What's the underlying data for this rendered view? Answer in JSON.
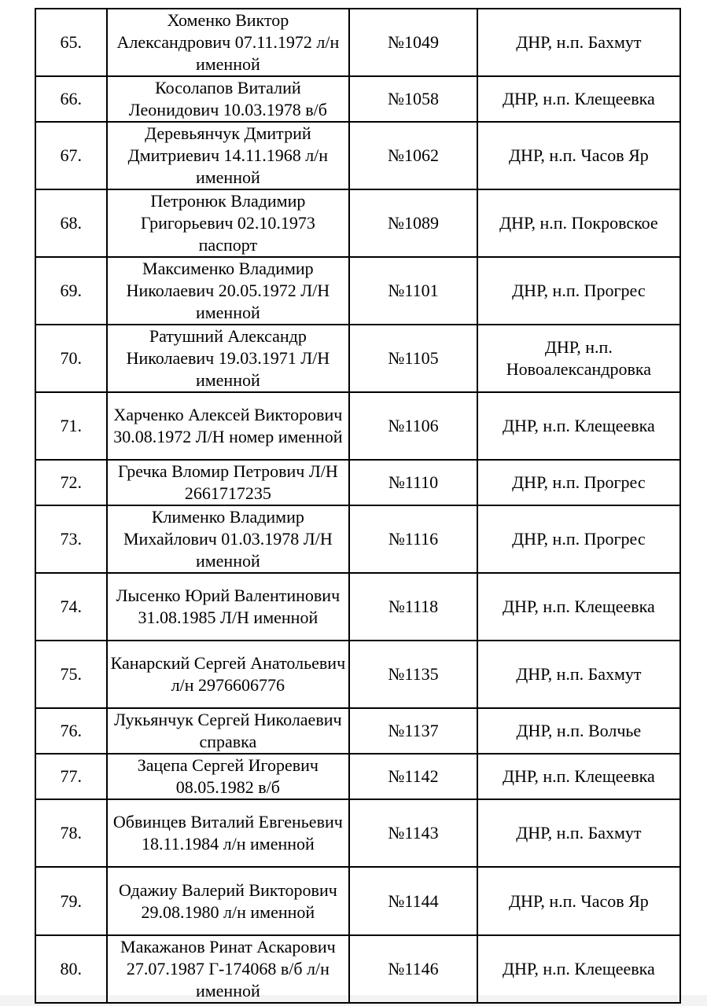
{
  "rows": [
    {
      "num": "65.",
      "name": "Хоменко Виктор Александрович 07.11.1972 л/н именной",
      "id": "№1049",
      "place": "ДНР, н.п. Бахмут"
    },
    {
      "num": "66.",
      "name": "Косолапов Виталий Леонидович 10.03.1978 в/б",
      "id": "№1058",
      "place": "ДНР, н.п. Клещеевка"
    },
    {
      "num": "67.",
      "name": "Деревьянчук Дмитрий Дмитриевич 14.11.1968 л/н именной",
      "id": "№1062",
      "place": "ДНР, н.п. Часов Яр"
    },
    {
      "num": "68.",
      "name": "Петронюк Владимир Григорьевич 02.10.1973 паспорт",
      "id": "№1089",
      "place": "ДНР, н.п. Покровское"
    },
    {
      "num": "69.",
      "name": "Максименко Владимир Николаевич 20.05.1972 Л/Н именной",
      "id": "№1101",
      "place": "ДНР, н.п. Прогрес"
    },
    {
      "num": "70.",
      "name": "Ратушний Александр Николаевич 19.03.1971 Л/Н именной",
      "id": "№1105",
      "place": "ДНР, н.п. Новоалександровка"
    },
    {
      "num": "71.",
      "name": "Харченко Алексей Викторович 30.08.1972 Л/Н номер именной",
      "id": "№1106",
      "place": "ДНР, н.п. Клещеевка"
    },
    {
      "num": "72.",
      "name": "Гречка Вломир Петрович Л/Н 2661717235",
      "id": "№1110",
      "place": "ДНР, н.п. Прогрес"
    },
    {
      "num": "73.",
      "name": "Клименко Владимир Михайлович 01.03.1978 Л/Н именной",
      "id": "№1116",
      "place": "ДНР, н.п. Прогрес"
    },
    {
      "num": "74.",
      "name": "Лысенко Юрий Валентинович 31.08.1985 Л/Н именной",
      "id": "№1118",
      "place": "ДНР, н.п. Клещеевка"
    },
    {
      "num": "75.",
      "name": "Канарский Сергей Анатольевич л/н 2976606776",
      "id": "№1135",
      "place": "ДНР, н.п. Бахмут"
    },
    {
      "num": "76.",
      "name": "Лукьянчук Сергей Николаевич справка",
      "id": "№1137",
      "place": "ДНР, н.п. Волчье"
    },
    {
      "num": "77.",
      "name": "Зацепа Сергей Игоревич 08.05.1982 в/б",
      "id": "№1142",
      "place": "ДНР, н.п. Клещеевка"
    },
    {
      "num": "78.",
      "name": "Обвинцев Виталий Евгеньевич 18.11.1984 л/н именной",
      "id": "№1143",
      "place": "ДНР, н.п. Бахмут"
    },
    {
      "num": "79.",
      "name": "Одажиу Валерий Викторович 29.08.1980 л/н именной",
      "id": "№1144",
      "place": "ДНР, н.п. Часов Яр"
    },
    {
      "num": "80.",
      "name": "Макажанов Ринат Аскарович 27.07.1987 Г-174068 в/б л/н именной",
      "id": "№1146",
      "place": "ДНР, н.п. Клещеевка"
    }
  ]
}
